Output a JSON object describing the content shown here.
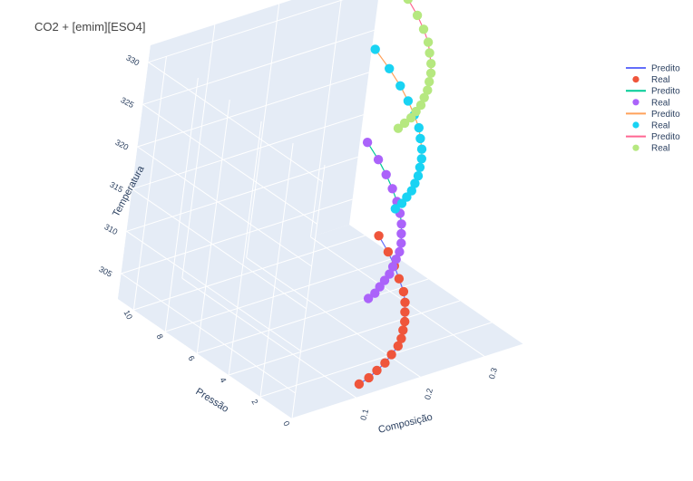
{
  "title": "CO2 + [emim][ESO4]",
  "colors": {
    "plane": "#e5ecf6",
    "grid": "#ffffff",
    "red": "#ef553b",
    "purple": "#ab63fa",
    "cyan": "#19d3f3",
    "green": "#b6e880",
    "line_blue": "#636efa",
    "line_teal": "#00cc96",
    "line_orange": "#ffa15a",
    "line_pink": "#ff6692"
  },
  "chart_data": {
    "type": "scatter3d",
    "title": "CO2 + [emim][ESO4]",
    "axes": {
      "x": {
        "label": "Composição",
        "ticks": [
          "0.3",
          "0.2",
          "0.1"
        ],
        "range": [
          0,
          0.36
        ]
      },
      "y": {
        "label": "Pressão",
        "ticks": [
          "0",
          "2",
          "4",
          "6",
          "8",
          "10"
        ],
        "range": [
          0,
          11
        ]
      },
      "z": {
        "label": "Temperatura",
        "ticks": [
          "305",
          "310",
          "315",
          "320",
          "325",
          "330"
        ],
        "range": [
          302,
          332
        ]
      }
    },
    "legend": [
      {
        "name": "Predito",
        "kind": "line",
        "color": "#636efa"
      },
      {
        "name": "Real",
        "kind": "marker",
        "color": "#ef553b"
      },
      {
        "name": "Predito",
        "kind": "line",
        "color": "#00cc96"
      },
      {
        "name": "Real",
        "kind": "marker",
        "color": "#ab63fa"
      },
      {
        "name": "Predito",
        "kind": "line",
        "color": "#ffa15a"
      },
      {
        "name": "Real",
        "kind": "marker",
        "color": "#19d3f3"
      },
      {
        "name": "Predito",
        "kind": "line",
        "color": "#ff6692"
      },
      {
        "name": "Real",
        "kind": "marker",
        "color": "#b6e880"
      }
    ],
    "series": [
      {
        "name": "Real",
        "marker_color": "#ef553b",
        "line_color": "#636efa",
        "temperature": 303,
        "composition": [
          0.36,
          0.345,
          0.33,
          0.315,
          0.3,
          0.285,
          0.27,
          0.255,
          0.24,
          0.225,
          0.21,
          0.19,
          0.17,
          0.15,
          0.13,
          0.11
        ],
        "pressure": [
          9.2,
          8.0,
          7.0,
          6.1,
          5.2,
          4.5,
          3.9,
          3.3,
          2.8,
          2.3,
          1.9,
          1.5,
          1.1,
          0.8,
          0.5,
          0.3
        ]
      },
      {
        "name": "Real",
        "marker_color": "#ab63fa",
        "line_color": "#00cc96",
        "temperature": 313,
        "composition": [
          0.35,
          0.335,
          0.32,
          0.305,
          0.29,
          0.275,
          0.26,
          0.245,
          0.23,
          0.215,
          0.2,
          0.185,
          0.17,
          0.155,
          0.14,
          0.125,
          0.11
        ],
        "pressure": [
          10.2,
          8.9,
          7.8,
          6.8,
          5.9,
          5.1,
          4.4,
          3.8,
          3.2,
          2.7,
          2.3,
          1.9,
          1.5,
          1.2,
          0.9,
          0.6,
          0.4
        ]
      },
      {
        "name": "Real",
        "marker_color": "#19d3f3",
        "line_color": "#ffa15a",
        "temperature": 323,
        "composition": [
          0.36,
          0.345,
          0.33,
          0.315,
          0.3,
          0.285,
          0.27,
          0.255,
          0.24,
          0.225,
          0.21,
          0.195,
          0.18,
          0.165,
          0.15,
          0.135
        ],
        "pressure": [
          10.8,
          9.3,
          8.0,
          6.9,
          5.9,
          5.0,
          4.3,
          3.6,
          3.0,
          2.5,
          2.0,
          1.6,
          1.2,
          0.9,
          0.6,
          0.4
        ]
      },
      {
        "name": "Real",
        "marker_color": "#b6e880",
        "line_color": "#ff6692",
        "temperature": 333,
        "composition": [
          0.36,
          0.345,
          0.33,
          0.315,
          0.3,
          0.285,
          0.27,
          0.255,
          0.24,
          0.225,
          0.21,
          0.195,
          0.18,
          0.165,
          0.15,
          0.135,
          0.12
        ],
        "pressure": [
          11.0,
          9.5,
          8.2,
          7.0,
          6.0,
          5.1,
          4.4,
          3.7,
          3.1,
          2.6,
          2.1,
          1.7,
          1.3,
          1.0,
          0.7,
          0.5,
          0.3
        ]
      }
    ]
  }
}
